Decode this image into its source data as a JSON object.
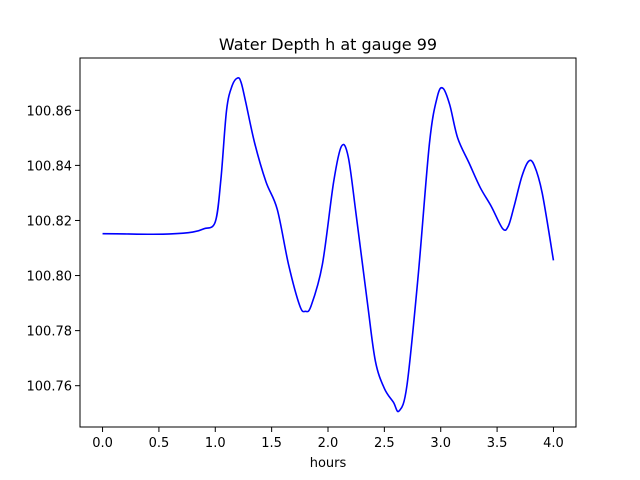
{
  "chart_data": {
    "type": "line",
    "title": "Water Depth h at gauge 99",
    "xlabel": "hours",
    "ylabel": "",
    "xlim": [
      -0.2,
      4.2
    ],
    "ylim": [
      100.745,
      100.879
    ],
    "xticks": [
      0.0,
      0.5,
      1.0,
      1.5,
      2.0,
      2.5,
      3.0,
      3.5,
      4.0
    ],
    "xtick_labels": [
      "0.0",
      "0.5",
      "1.0",
      "1.5",
      "2.0",
      "2.5",
      "3.0",
      "3.5",
      "4.0"
    ],
    "yticks": [
      100.76,
      100.78,
      100.8,
      100.82,
      100.84,
      100.86
    ],
    "ytick_labels": [
      "100.76",
      "100.78",
      "100.80",
      "100.82",
      "100.84",
      "100.86"
    ],
    "grid": false,
    "series": [
      {
        "color": "#0000ff",
        "x": [
          0.0,
          0.2,
          0.4,
          0.6,
          0.8,
          0.9,
          1.0,
          1.05,
          1.1,
          1.15,
          1.2,
          1.23,
          1.27,
          1.35,
          1.45,
          1.55,
          1.65,
          1.75,
          1.8,
          1.85,
          1.95,
          2.05,
          2.12,
          2.18,
          2.25,
          2.35,
          2.42,
          2.5,
          2.58,
          2.63,
          2.7,
          2.8,
          2.9,
          2.97,
          3.02,
          3.08,
          3.15,
          3.25,
          3.35,
          3.45,
          3.55,
          3.6,
          3.65,
          3.72,
          3.78,
          3.83,
          3.9,
          4.0
        ],
        "y": [
          100.8152,
          100.8151,
          100.815,
          100.8151,
          100.8158,
          100.817,
          100.8195,
          100.835,
          100.86,
          100.869,
          100.8718,
          100.87,
          100.863,
          100.848,
          100.834,
          100.824,
          100.804,
          100.789,
          100.787,
          100.789,
          100.804,
          100.834,
          100.847,
          100.843,
          100.822,
          100.79,
          100.769,
          100.759,
          100.754,
          100.7508,
          100.76,
          100.8,
          100.848,
          100.865,
          100.868,
          100.862,
          100.85,
          100.841,
          100.832,
          100.825,
          100.817,
          100.818,
          100.825,
          100.836,
          100.8415,
          100.84,
          100.83,
          100.8055
        ]
      }
    ]
  }
}
